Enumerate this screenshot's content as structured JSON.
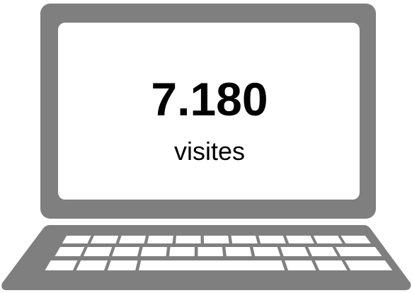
{
  "value": "7.180",
  "label": "visites"
}
